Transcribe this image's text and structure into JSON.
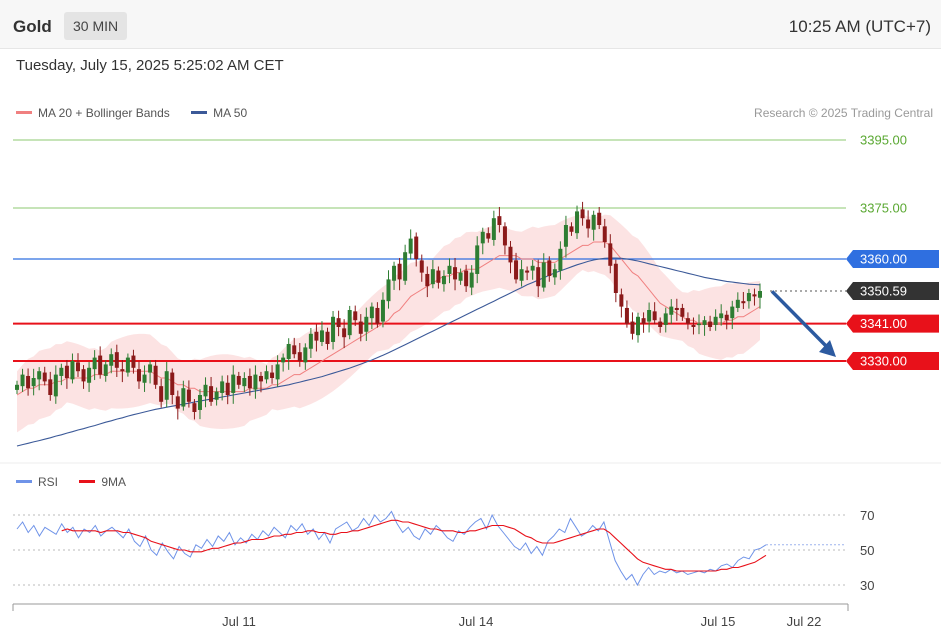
{
  "header": {
    "instrument": "Gold",
    "timeframe": "30 MIN",
    "clock": "10:25 AM (UTC+7)"
  },
  "datetime": "Tuesday, July 15, 2025 5:25:02 AM CET",
  "legend": {
    "ma20_label": "MA 20 + Bollinger Bands",
    "ma50_label": "MA 50",
    "rsi_label": "RSI",
    "ma9_label": "9MA"
  },
  "credit": "Research © 2025 Trading Central",
  "colors": {
    "up": "#2e7d32",
    "down": "#8b1a1a",
    "band": "#fcdede",
    "ma20": "#f08080",
    "ma50": "#3b5998",
    "blue_level": "#2f6fe0",
    "red_level": "#e8111a",
    "green_level": "#8cc870",
    "last_price": "#333333",
    "rsi": "#6f93e8",
    "rsi_ma": "#e8111a"
  },
  "chart_data": [
    {
      "type": "candlestick",
      "title": "Gold 30 MIN",
      "ylim": [
        3300,
        3400
      ],
      "x_ticks": [
        "Jul 11",
        "Jul 14",
        "Jul 15",
        "Jul 22"
      ],
      "levels": [
        {
          "label": "3395.00",
          "value": 3395.0,
          "kind": "target"
        },
        {
          "label": "3375.00",
          "value": 3375.0,
          "kind": "target"
        },
        {
          "label": "3360.00",
          "value": 3360.0,
          "kind": "resistance"
        },
        {
          "label": "3350.59",
          "value": 3350.59,
          "kind": "last"
        },
        {
          "label": "3341.00",
          "value": 3341.0,
          "kind": "pivot"
        },
        {
          "label": "3330.00",
          "value": 3330.0,
          "kind": "support"
        }
      ],
      "arrow": {
        "from": 3350.5,
        "to": 3330.0,
        "direction": "down"
      },
      "closes": [
        3323,
        3326,
        3322,
        3325,
        3327,
        3324,
        3320,
        3326,
        3328,
        3325,
        3330,
        3327,
        3324,
        3328,
        3331,
        3326,
        3329,
        3332,
        3328,
        3327,
        3331,
        3328,
        3324,
        3326,
        3329,
        3323,
        3318,
        3327,
        3320,
        3316,
        3322,
        3318,
        3315,
        3320,
        3323,
        3318,
        3321,
        3324,
        3320,
        3326,
        3323,
        3325,
        3322,
        3326,
        3324,
        3327,
        3325,
        3329,
        3331,
        3335,
        3332,
        3330,
        3334,
        3338,
        3336,
        3339,
        3335,
        3343,
        3340,
        3337,
        3345,
        3342,
        3338,
        3343,
        3346,
        3341,
        3348,
        3354,
        3358,
        3354,
        3362,
        3366,
        3360,
        3356,
        3352,
        3357,
        3353,
        3355,
        3358,
        3354,
        3356,
        3352,
        3356,
        3364,
        3368,
        3366,
        3372,
        3370,
        3364,
        3359,
        3354,
        3357,
        3356,
        3358,
        3352,
        3359,
        3355,
        3357,
        3363,
        3370,
        3368,
        3374,
        3372,
        3369,
        3373,
        3370,
        3365,
        3358,
        3350,
        3346,
        3341,
        3338,
        3343,
        3341,
        3345,
        3342,
        3340,
        3344,
        3346,
        3345,
        3343,
        3341,
        3340,
        3341,
        3342,
        3340,
        3343,
        3344,
        3342,
        3346,
        3348,
        3347,
        3350,
        3349,
        3350.59
      ],
      "ma20": [
        3320,
        3321,
        3322,
        3322,
        3323,
        3323,
        3323,
        3324,
        3324,
        3325,
        3325,
        3325,
        3325,
        3325,
        3326,
        3326,
        3326,
        3327,
        3327,
        3327,
        3327,
        3327,
        3327,
        3327,
        3327,
        3326,
        3325,
        3325,
        3324,
        3323,
        3323,
        3322,
        3322,
        3321,
        3321,
        3321,
        3321,
        3321,
        3321,
        3321,
        3321,
        3321,
        3322,
        3322,
        3322,
        3322,
        3323,
        3323,
        3324,
        3325,
        3326,
        3326,
        3327,
        3328,
        3329,
        3330,
        3331,
        3332,
        3333,
        3334,
        3335,
        3336,
        3337,
        3338,
        3339,
        3340,
        3341,
        3342,
        3344,
        3345,
        3347,
        3349,
        3350,
        3351,
        3352,
        3353,
        3354,
        3355,
        3355,
        3356,
        3356,
        3357,
        3357,
        3357,
        3358,
        3359,
        3360,
        3361,
        3361,
        3361,
        3361,
        3360,
        3360,
        3360,
        3359,
        3359,
        3359,
        3359,
        3360,
        3361,
        3362,
        3363,
        3364,
        3364,
        3365,
        3365,
        3365,
        3364,
        3362,
        3360,
        3358,
        3356,
        3355,
        3353,
        3351,
        3349,
        3347,
        3346,
        3345,
        3344,
        3343,
        3342,
        3342,
        3341,
        3341,
        3341,
        3341,
        3341,
        3342,
        3342,
        3343,
        3343,
        3344,
        3345,
        3346
      ],
      "ma50": [
        3305,
        3305.4,
        3305.8,
        3306.2,
        3306.6,
        3307,
        3307.4,
        3307.9,
        3308.3,
        3308.8,
        3309.2,
        3309.7,
        3310.1,
        3310.6,
        3311,
        3311.5,
        3312,
        3312.4,
        3312.9,
        3313.3,
        3313.8,
        3314.2,
        3314.6,
        3315,
        3315.4,
        3315.8,
        3316.1,
        3316.4,
        3316.7,
        3317,
        3317.3,
        3317.6,
        3317.9,
        3318.2,
        3318.5,
        3318.8,
        3319.1,
        3319.4,
        3319.7,
        3320,
        3320.3,
        3320.6,
        3320.9,
        3321.2,
        3321.5,
        3321.8,
        3322.1,
        3322.4,
        3322.7,
        3323,
        3323.4,
        3323.8,
        3324.2,
        3324.6,
        3325,
        3325.4,
        3325.9,
        3326.4,
        3326.9,
        3327.4,
        3327.9,
        3328.5,
        3329.1,
        3329.7,
        3330.3,
        3331,
        3331.7,
        3332.4,
        3333.2,
        3334,
        3334.8,
        3335.6,
        3336.4,
        3337.2,
        3338,
        3338.8,
        3339.6,
        3340.4,
        3341.2,
        3342,
        3342.8,
        3343.6,
        3344.4,
        3345.2,
        3346,
        3346.8,
        3347.6,
        3348.4,
        3349.2,
        3350,
        3350.8,
        3351.6,
        3352.4,
        3353.1,
        3353.8,
        3354.5,
        3355.2,
        3355.9,
        3356.5,
        3357.1,
        3357.7,
        3358.3,
        3358.8,
        3359.3,
        3359.7,
        3360,
        3360.2,
        3360.3,
        3360.3,
        3360.2,
        3360,
        3359.7,
        3359.4,
        3359,
        3358.6,
        3358.2,
        3357.8,
        3357.4,
        3357,
        3356.6,
        3356.2,
        3355.8,
        3355.4,
        3355,
        3354.6,
        3354.3,
        3354,
        3353.7,
        3353.4,
        3353.2,
        3353,
        3352.8,
        3352.6,
        3352.5,
        3352.4
      ],
      "series": [
        {
          "name": "MA 20 + Bollinger Bands"
        },
        {
          "name": "MA 50"
        }
      ]
    },
    {
      "type": "line",
      "title": "RSI",
      "ylim": [
        20,
        80
      ],
      "y_ticks": [
        70,
        50,
        30
      ],
      "series": [
        {
          "name": "RSI",
          "values": [
            62,
            66,
            60,
            64,
            58,
            63,
            61,
            59,
            65,
            60,
            63,
            57,
            62,
            60,
            64,
            58,
            61,
            63,
            60,
            57,
            62,
            55,
            52,
            58,
            50,
            47,
            54,
            49,
            45,
            52,
            48,
            46,
            53,
            51,
            56,
            52,
            58,
            55,
            60,
            53,
            57,
            54,
            59,
            56,
            61,
            58,
            63,
            60,
            57,
            64,
            61,
            65,
            59,
            62,
            56,
            60,
            54,
            62,
            64,
            66,
            61,
            63,
            68,
            64,
            70,
            66,
            68,
            72,
            65,
            60,
            63,
            58,
            56,
            62,
            59,
            64,
            61,
            57,
            55,
            61,
            59,
            63,
            66,
            68,
            62,
            70,
            64,
            60,
            56,
            52,
            50,
            54,
            48,
            52,
            47,
            55,
            58,
            62,
            60,
            68,
            63,
            58,
            60,
            64,
            61,
            66,
            55,
            44,
            38,
            33,
            36,
            30,
            36,
            40,
            36,
            38,
            37,
            39,
            37,
            38,
            36,
            37,
            38,
            37,
            39,
            38,
            41,
            42,
            40,
            44,
            46,
            45,
            50,
            51,
            53
          ]
        },
        {
          "name": "9MA",
          "values": [
            null,
            null,
            null,
            null,
            null,
            null,
            null,
            null,
            61,
            62,
            61,
            61,
            61,
            61,
            61,
            60,
            61,
            61,
            61,
            60,
            60,
            59,
            58,
            57,
            55,
            54,
            53,
            52,
            51,
            50,
            50,
            49,
            49,
            49,
            50,
            51,
            51,
            52,
            53,
            54,
            54,
            55,
            56,
            56,
            56,
            57,
            58,
            58,
            59,
            59,
            60,
            60,
            61,
            61,
            60,
            60,
            59,
            59,
            60,
            60,
            61,
            61,
            62,
            63,
            64,
            65,
            66,
            67,
            67,
            66,
            66,
            65,
            64,
            63,
            62,
            62,
            61,
            61,
            61,
            60,
            60,
            61,
            61,
            62,
            63,
            64,
            64,
            64,
            63,
            62,
            60,
            58,
            57,
            55,
            54,
            54,
            54,
            55,
            56,
            57,
            58,
            59,
            60,
            61,
            62,
            62,
            60,
            57,
            54,
            51,
            48,
            45,
            43,
            42,
            41,
            40,
            39,
            39,
            38,
            38,
            38,
            38,
            38,
            38,
            38,
            38,
            39,
            39,
            40,
            40,
            41,
            42,
            43,
            45,
            47
          ]
        }
      ]
    }
  ]
}
